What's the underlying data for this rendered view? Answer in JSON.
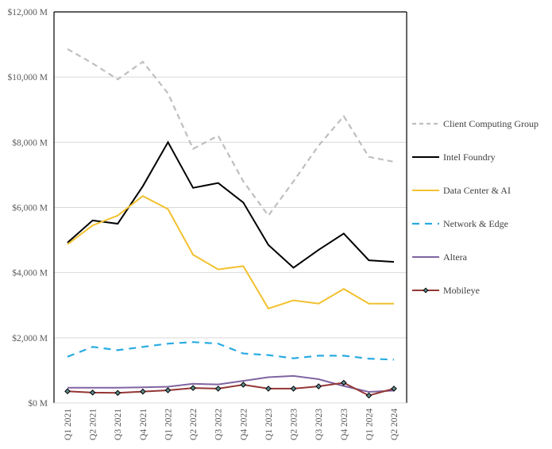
{
  "chart_data": {
    "type": "line",
    "title": "",
    "xlabel": "",
    "ylabel": "",
    "ylim": [
      0,
      12000
    ],
    "yticks": [
      0,
      2000,
      4000,
      6000,
      8000,
      10000,
      12000
    ],
    "ytick_labels": [
      "$0 M",
      "$2,000 M",
      "$4,000 M",
      "$6,000 M",
      "$8,000 M",
      "$10,000 M",
      "$12,000 M"
    ],
    "grid": "horizontal",
    "legend_position": "right",
    "categories": [
      "Q1 2021",
      "Q2 2021",
      "Q3 2021",
      "Q4 2021",
      "Q1 2022",
      "Q2 2022",
      "Q3 2022",
      "Q4 2022",
      "Q1 2023",
      "Q2 2023",
      "Q3 2023",
      "Q4 2023",
      "Q1 2024",
      "Q2 2024"
    ],
    "series": [
      {
        "name": "Client Computing Group",
        "color": "#bfbfbf",
        "style": "dashed",
        "values": [
          10860,
          10420,
          9930,
          10470,
          9500,
          7800,
          8200,
          6800,
          5750,
          6800,
          7900,
          8800,
          7550,
          7400
        ]
      },
      {
        "name": "Intel Foundry",
        "color": "#000000",
        "style": "solid",
        "values": [
          4920,
          5600,
          5500,
          6650,
          8000,
          6600,
          6750,
          6150,
          4850,
          4150,
          4700,
          5200,
          4380,
          4330
        ]
      },
      {
        "name": "Data Center & AI",
        "color": "#f2c12e",
        "style": "solid",
        "values": [
          4870,
          5450,
          5750,
          6350,
          5950,
          4550,
          4100,
          4200,
          2900,
          3150,
          3050,
          3500,
          3050,
          3050
        ]
      },
      {
        "name": "Network & Edge",
        "color": "#29abe2",
        "style": "dashed",
        "values": [
          1420,
          1720,
          1620,
          1720,
          1820,
          1870,
          1820,
          1520,
          1470,
          1370,
          1450,
          1450,
          1360,
          1330
        ]
      },
      {
        "name": "Altera",
        "color": "#8064a2",
        "style": "solid",
        "values": [
          470,
          470,
          470,
          480,
          500,
          590,
          570,
          680,
          790,
          830,
          730,
          520,
          340,
          380
        ]
      },
      {
        "name": "Mobileye",
        "color": "#943634",
        "style": "solid-markers",
        "values": [
          360,
          320,
          310,
          350,
          390,
          460,
          440,
          560,
          440,
          440,
          510,
          620,
          230,
          440
        ]
      }
    ]
  }
}
